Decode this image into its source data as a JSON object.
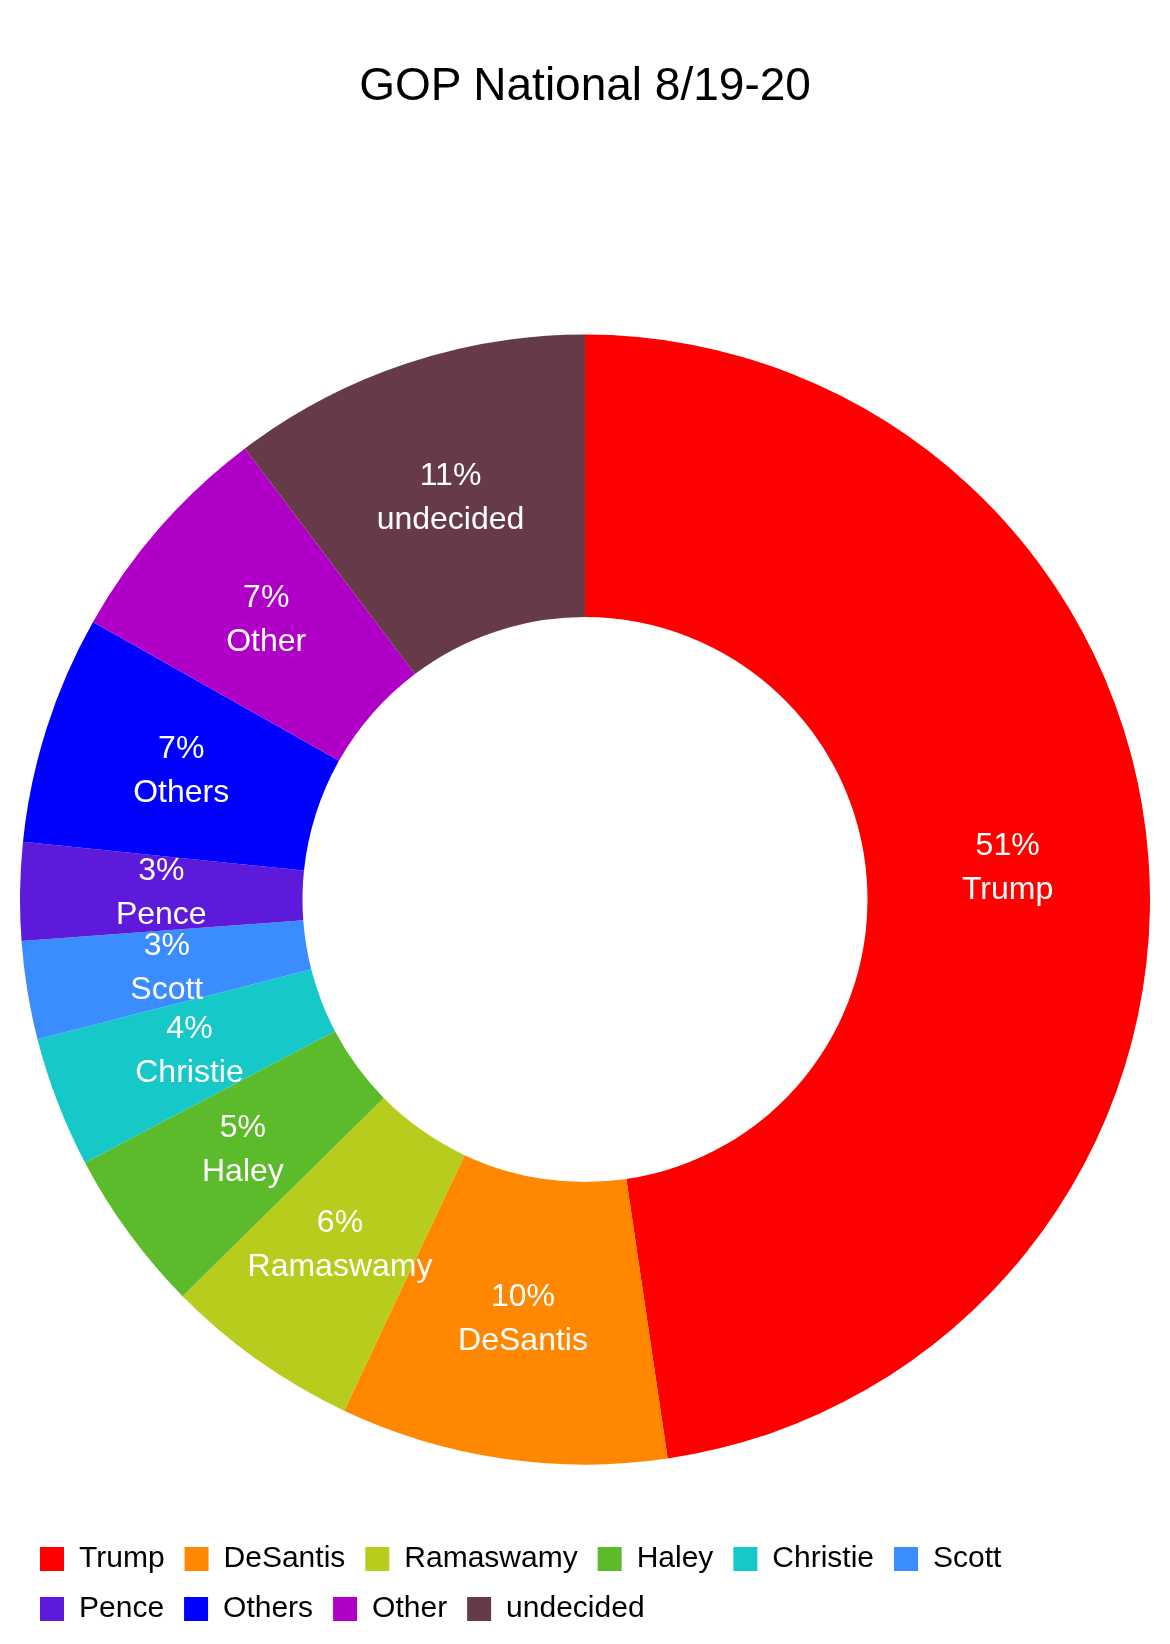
{
  "chart_data": {
    "type": "donut",
    "title": "GOP National 8/19-20",
    "categories": [
      "Trump",
      "DeSantis",
      "Ramaswamy",
      "Haley",
      "Christie",
      "Scott",
      "Pence",
      "Others",
      "Other",
      "undecided"
    ],
    "values": [
      51,
      10,
      6,
      5,
      4,
      3,
      3,
      7,
      7,
      11
    ],
    "value_labels": [
      "51%",
      "10%",
      "6%",
      "5%",
      "4%",
      "3%",
      "3%",
      "7%",
      "7%",
      "11%"
    ],
    "colors": [
      "#ff0000",
      "#ff8800",
      "#b8cc1e",
      "#5cbb2a",
      "#16c8c8",
      "#3a8cff",
      "#5e1adb",
      "#0000ff",
      "#b000c8",
      "#663a48"
    ],
    "legend": "bottom"
  }
}
